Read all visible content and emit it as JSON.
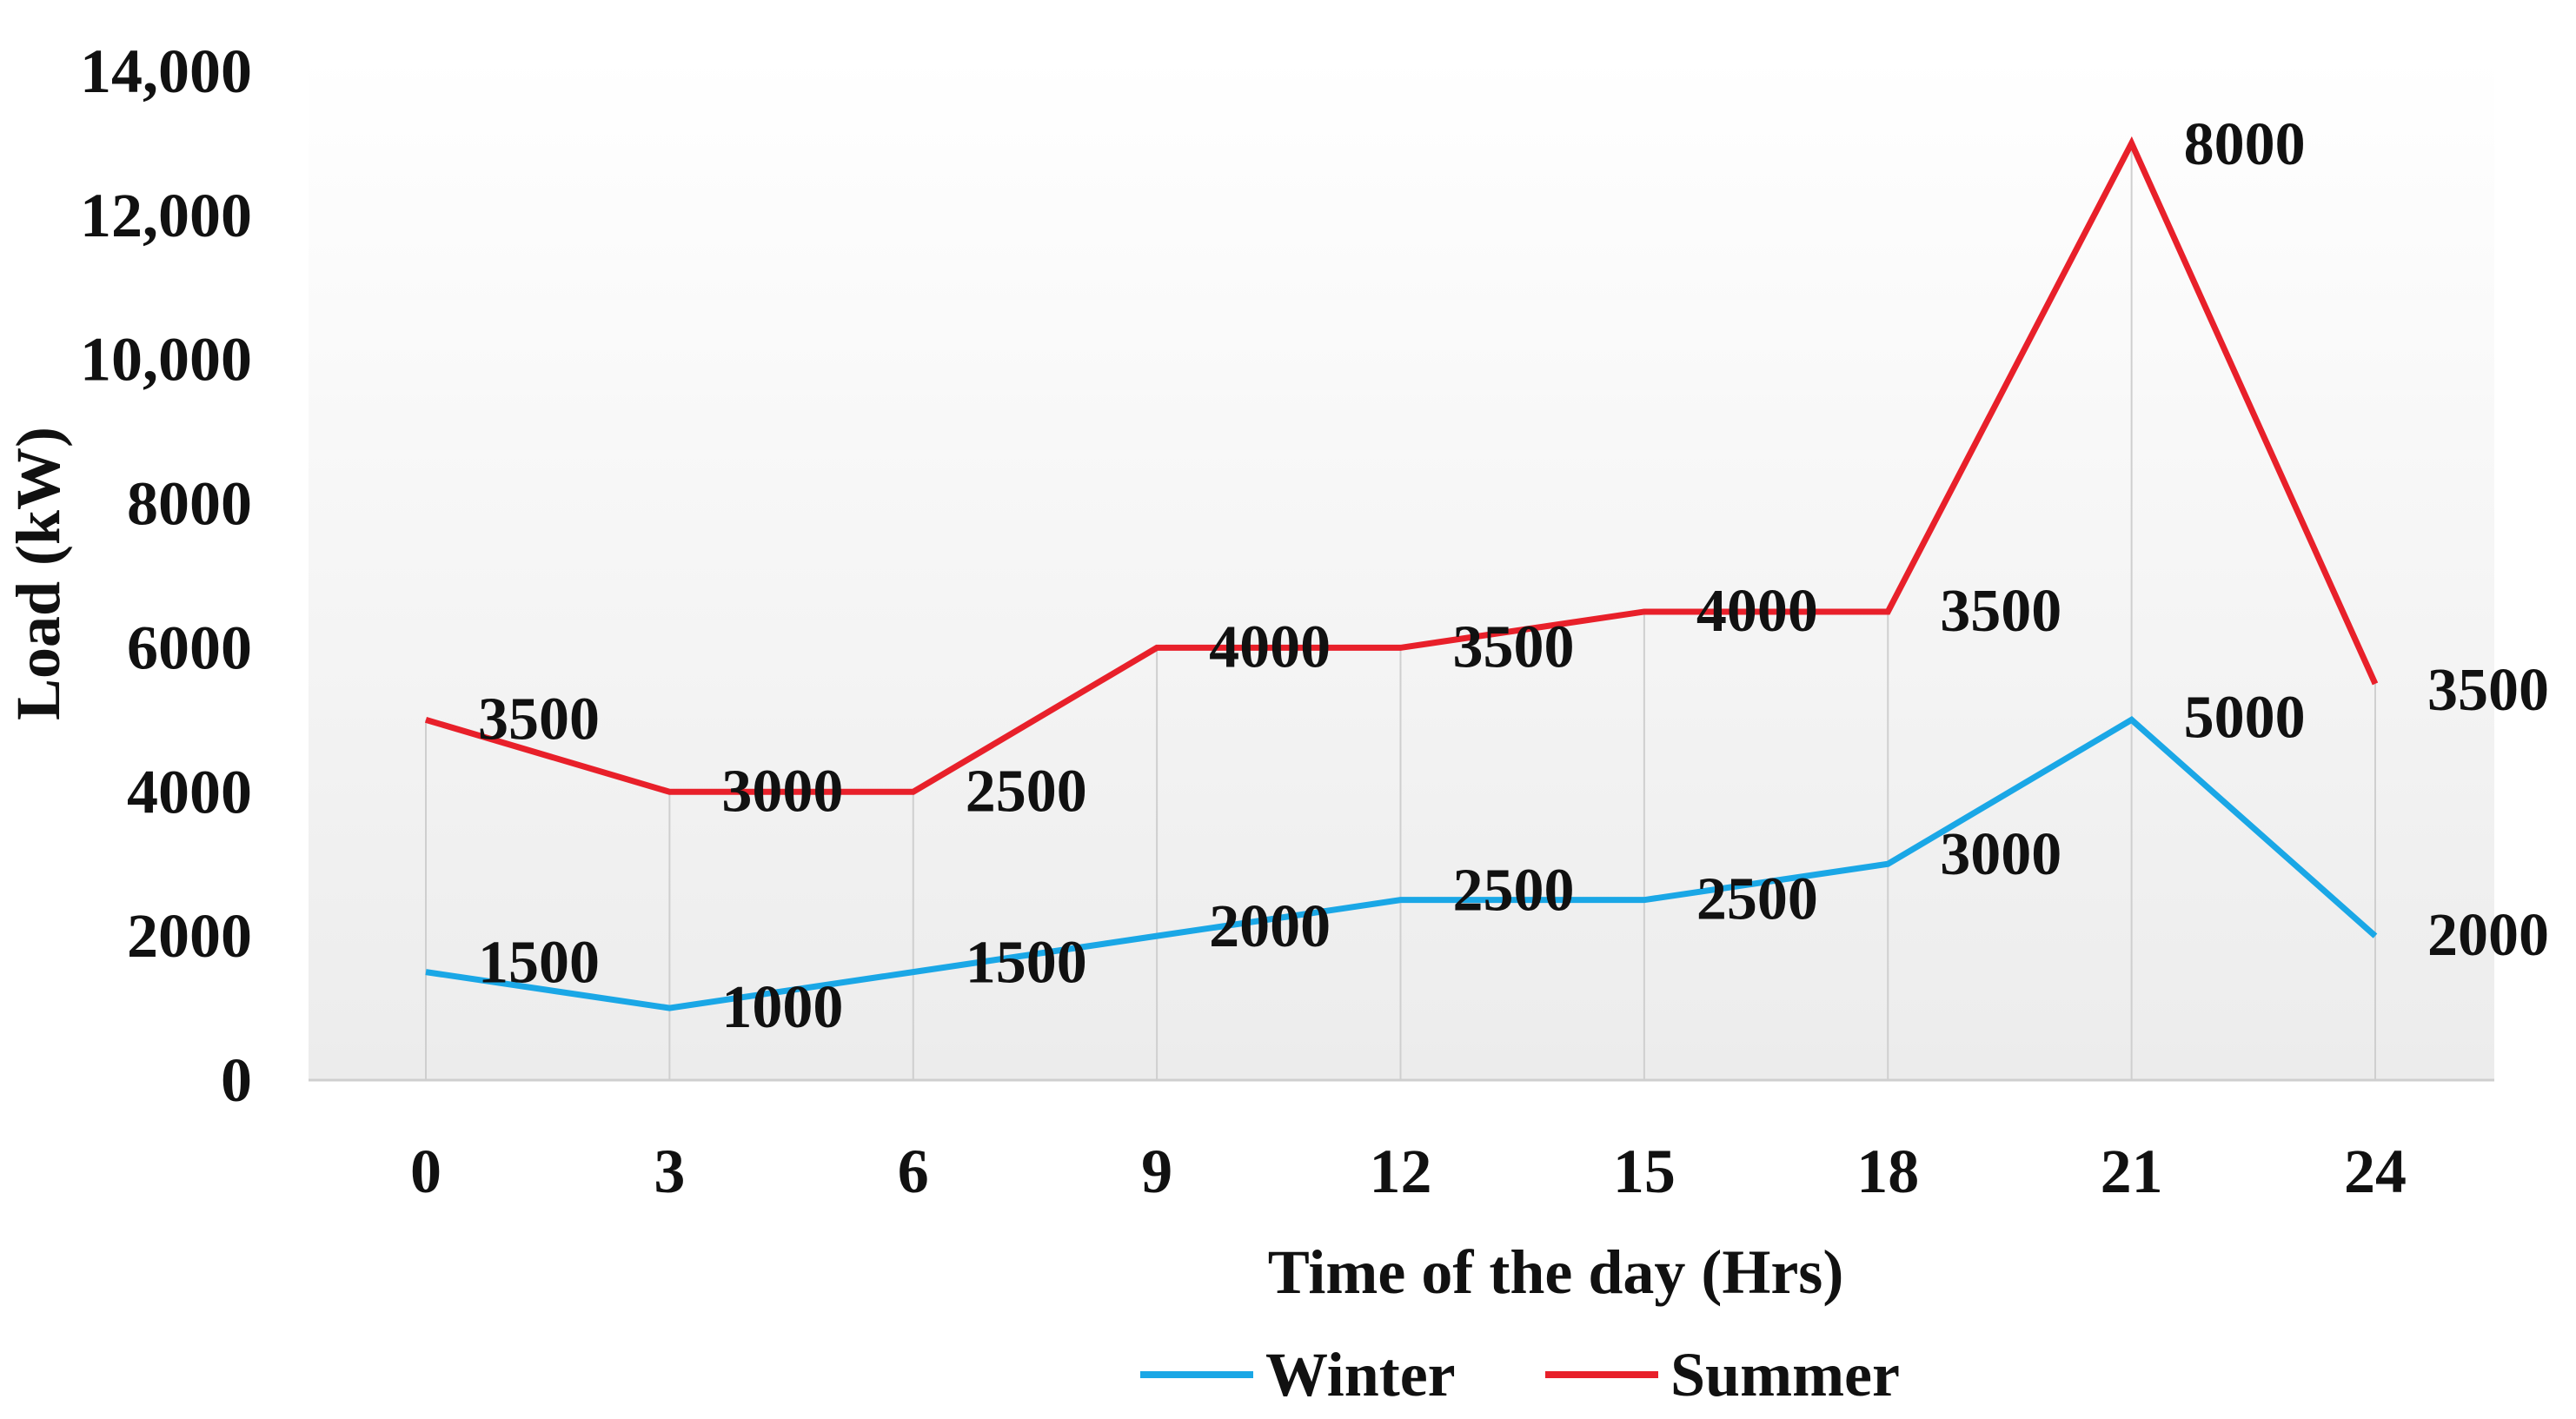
{
  "chart_data": {
    "type": "line",
    "title": "",
    "xlabel": "Time of the day (Hrs)",
    "ylabel": "Load (kW)",
    "x": [
      0,
      3,
      6,
      9,
      12,
      15,
      18,
      21,
      24
    ],
    "x_tick_labels": [
      "0",
      "3",
      "6",
      "9",
      "12",
      "15",
      "18",
      "21",
      "24"
    ],
    "ylim": [
      0,
      14000
    ],
    "y_ticks": [
      0,
      2000,
      4000,
      6000,
      8000,
      10000,
      12000,
      14000
    ],
    "y_tick_labels": [
      "0",
      "2000",
      "4000",
      "6000",
      "8000",
      "10,000",
      "12,000",
      "14,000"
    ],
    "grid": "vertical",
    "legend_position": "bottom",
    "series": [
      {
        "name": "Winter",
        "color": "#1aa7e6",
        "values": [
          1500,
          1000,
          1500,
          2000,
          2500,
          2500,
          3000,
          5000,
          2000
        ],
        "labels": [
          "1500",
          "1000",
          "1500",
          "2000",
          "2500",
          "2500",
          "3000",
          "5000",
          "2000"
        ]
      },
      {
        "name": "Summer",
        "color": "#e8202a",
        "values": [
          5000,
          4000,
          4000,
          6000,
          6000,
          6500,
          6500,
          13000,
          5500
        ],
        "labels": [
          "3500",
          "3000",
          "2500",
          "4000",
          "3500",
          "4000",
          "3500",
          "8000",
          "3500"
        ]
      }
    ]
  }
}
